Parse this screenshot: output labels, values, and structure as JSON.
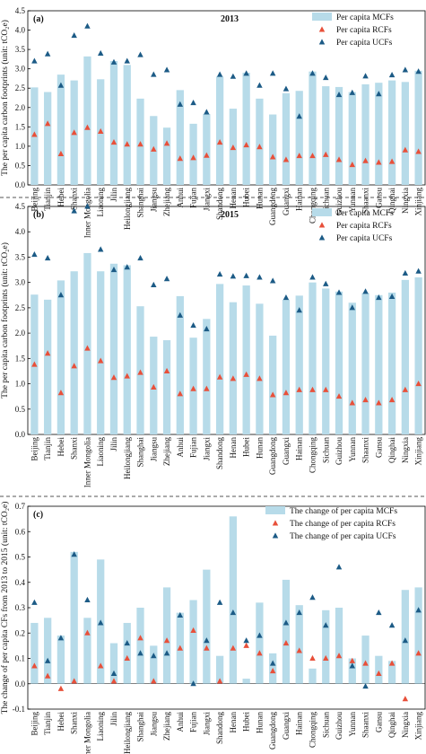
{
  "chart_data": [
    {
      "type": "bar",
      "panel_label": "(a)",
      "year_label": "2013",
      "ylabel": "The per capita carbon footprints (unit: tCO₂e)",
      "ylim": [
        0,
        4.5
      ],
      "yticks": [
        "0.0",
        "0.5",
        "1.0",
        "1.5",
        "2.0",
        "2.5",
        "3.0",
        "3.5",
        "4.0",
        "4.5"
      ],
      "categories": [
        "Beijing",
        "Tianjin",
        "Hebei",
        "Shanxi",
        "Inner Mongolia",
        "Liaoning",
        "Jilin",
        "Heilongjiang",
        "Shanghai",
        "Jiangsu",
        "Zhejiang",
        "Anhui",
        "Fujian",
        "Jiangxi",
        "Shandong",
        "Henan",
        "Hubei",
        "Hunan",
        "Guangdong",
        "Guangxi",
        "Hainan",
        "Chongqing",
        "Sichuan",
        "Guizhou",
        "Yunnan",
        "Shaanxi",
        "Gansu",
        "Qinghai",
        "Ningxia",
        "Xinjiang"
      ],
      "series": [
        {
          "name": "Per capita MCFs",
          "mark": "bar",
          "color": "#b7dbe9",
          "values": [
            2.52,
            2.4,
            2.85,
            2.7,
            3.32,
            2.73,
            3.2,
            3.1,
            2.23,
            1.78,
            1.48,
            2.45,
            1.58,
            1.83,
            2.8,
            1.97,
            2.9,
            2.23,
            1.82,
            2.37,
            2.43,
            2.93,
            2.55,
            2.53,
            2.4,
            2.6,
            2.64,
            2.7,
            2.66,
            2.95
          ]
        },
        {
          "name": "Per capita RCFs",
          "mark": "triangle",
          "color": "#e8503a",
          "values": [
            1.3,
            1.58,
            0.8,
            1.35,
            1.48,
            1.38,
            1.1,
            1.05,
            1.05,
            0.92,
            1.07,
            0.68,
            0.7,
            0.76,
            1.1,
            0.96,
            1.03,
            0.98,
            0.72,
            0.65,
            0.75,
            0.75,
            0.78,
            0.65,
            0.52,
            0.62,
            0.58,
            0.6,
            0.9,
            0.86
          ]
        },
        {
          "name": "Per capita UCFs",
          "mark": "triangle",
          "color": "#1c5b86",
          "values": [
            3.2,
            3.38,
            2.57,
            3.86,
            4.1,
            3.4,
            3.17,
            3.2,
            3.36,
            2.85,
            2.97,
            2.08,
            2.12,
            1.88,
            2.85,
            2.8,
            2.88,
            2.57,
            2.88,
            2.48,
            1.77,
            2.88,
            2.77,
            2.33,
            2.38,
            2.81,
            2.35,
            2.84,
            2.97,
            2.93
          ]
        }
      ]
    },
    {
      "type": "bar",
      "panel_label": "(b)",
      "year_label": "2015",
      "ylabel": "The per capita carbon footprints (unit: tCO₂e)",
      "ylim": [
        0,
        4.5
      ],
      "yticks": [
        "0.0",
        "0.5",
        "1.0",
        "1.5",
        "2.0",
        "2.5",
        "3.0",
        "3.5",
        "4.0",
        "4.5"
      ],
      "categories": [
        "Beijing",
        "Tianjin",
        "Hebei",
        "Shanxi",
        "Inner Mongolia",
        "Liaoning",
        "Jilin",
        "Heilongjiang",
        "Shanghai",
        "Jiangsu",
        "Zhejiang",
        "Anhui",
        "Fujian",
        "Jiangxi",
        "Shandong",
        "Henan",
        "Hubei",
        "Hunan",
        "Guangdong",
        "Guangxi",
        "Hainan",
        "Chongqing",
        "Sichuan",
        "Guizhou",
        "Yunnan",
        "Shaanxi",
        "Gansu",
        "Qinghai",
        "Ningxia",
        "Xinjiang"
      ],
      "series": [
        {
          "name": "Per capita MCFs",
          "mark": "bar",
          "color": "#b7dbe9",
          "values": [
            2.76,
            2.66,
            3.04,
            3.22,
            3.58,
            3.22,
            3.37,
            3.34,
            2.53,
            1.93,
            1.86,
            2.73,
            1.91,
            2.28,
            2.97,
            2.61,
            2.94,
            2.58,
            1.95,
            2.66,
            2.74,
            3.0,
            2.88,
            2.82,
            2.6,
            2.79,
            2.75,
            2.8,
            3.05,
            3.1
          ]
        },
        {
          "name": "Per capita RCFs",
          "mark": "triangle",
          "color": "#e8503a",
          "values": [
            1.38,
            1.6,
            0.82,
            1.35,
            1.7,
            1.45,
            1.12,
            1.15,
            1.22,
            0.93,
            1.25,
            0.8,
            0.9,
            0.9,
            1.13,
            1.1,
            1.18,
            1.1,
            0.78,
            0.82,
            0.88,
            0.88,
            0.88,
            0.75,
            0.62,
            0.68,
            0.62,
            0.68,
            0.88,
            1.0
          ]
        },
        {
          "name": "Per capita UCFs",
          "mark": "triangle",
          "color": "#1c5b86",
          "values": [
            3.55,
            3.48,
            2.75,
            4.41,
            4.5,
            3.65,
            3.25,
            3.3,
            3.48,
            2.95,
            3.07,
            2.35,
            2.15,
            2.08,
            3.16,
            3.12,
            3.13,
            3.1,
            3.03,
            2.7,
            2.45,
            3.1,
            2.97,
            2.8,
            2.5,
            2.82,
            2.7,
            2.72,
            3.18,
            3.22
          ]
        }
      ]
    },
    {
      "type": "bar",
      "panel_label": "(c)",
      "year_label": "",
      "ylabel": "The change of per capita CFs from 2013 to 2015 (unit: tCO₂e)",
      "ylim": [
        -0.1,
        0.7
      ],
      "yticks": [
        "-0.1",
        "0.0",
        "0.1",
        "0.2",
        "0.3",
        "0.4",
        "0.5",
        "0.6",
        "0.7"
      ],
      "categories": [
        "Beijing",
        "Tianjin",
        "Hebei",
        "Shanxi",
        "Inner Mongolia",
        "Liaoning",
        "Jilin",
        "Heilongjiang",
        "Shanghai",
        "Jiangsu",
        "Zhejiang",
        "Anhui",
        "Fujian",
        "Jiangxi",
        "Shandong",
        "Henan",
        "Hubei",
        "Hunan",
        "Guangdong",
        "Guangxi",
        "Hainan",
        "Chongqing",
        "Sichuan",
        "Guizhou",
        "Yunnan",
        "Shaanxi",
        "Gansu",
        "Qinghai",
        "Ningxia",
        "Xinjiang"
      ],
      "series": [
        {
          "name": "The change of per capita MCFs",
          "mark": "bar",
          "color": "#b7dbe9",
          "values": [
            0.24,
            0.26,
            0.19,
            0.52,
            0.26,
            0.49,
            0.16,
            0.24,
            0.3,
            0.15,
            0.38,
            0.28,
            0.33,
            0.45,
            0.11,
            0.66,
            0.02,
            0.32,
            0.12,
            0.41,
            0.31,
            0.06,
            0.29,
            0.3,
            0.1,
            0.19,
            0.11,
            0.09,
            0.37,
            0.38
          ]
        },
        {
          "name": "The change of per capita RCFs",
          "mark": "triangle",
          "color": "#e8503a",
          "values": [
            0.07,
            0.03,
            -0.02,
            0.01,
            0.2,
            0.07,
            0.01,
            0.1,
            0.18,
            0.01,
            0.17,
            0.14,
            0.21,
            0.14,
            0.01,
            0.14,
            0.15,
            0.12,
            0.05,
            0.16,
            0.13,
            0.1,
            0.1,
            0.11,
            0.09,
            0.08,
            0.04,
            0.08,
            -0.06,
            0.12
          ]
        },
        {
          "name": "The change of per capita UCFs",
          "mark": "triangle",
          "color": "#1c5b86",
          "values": [
            0.32,
            0.09,
            0.18,
            0.51,
            0.33,
            0.24,
            0.04,
            0.16,
            0.12,
            0.11,
            0.12,
            0.27,
            0.0,
            0.17,
            0.32,
            0.28,
            0.17,
            0.19,
            0.08,
            0.24,
            0.28,
            0.34,
            0.23,
            0.46,
            0.07,
            -0.01,
            0.28,
            0.23,
            0.17,
            0.29
          ]
        }
      ]
    }
  ]
}
